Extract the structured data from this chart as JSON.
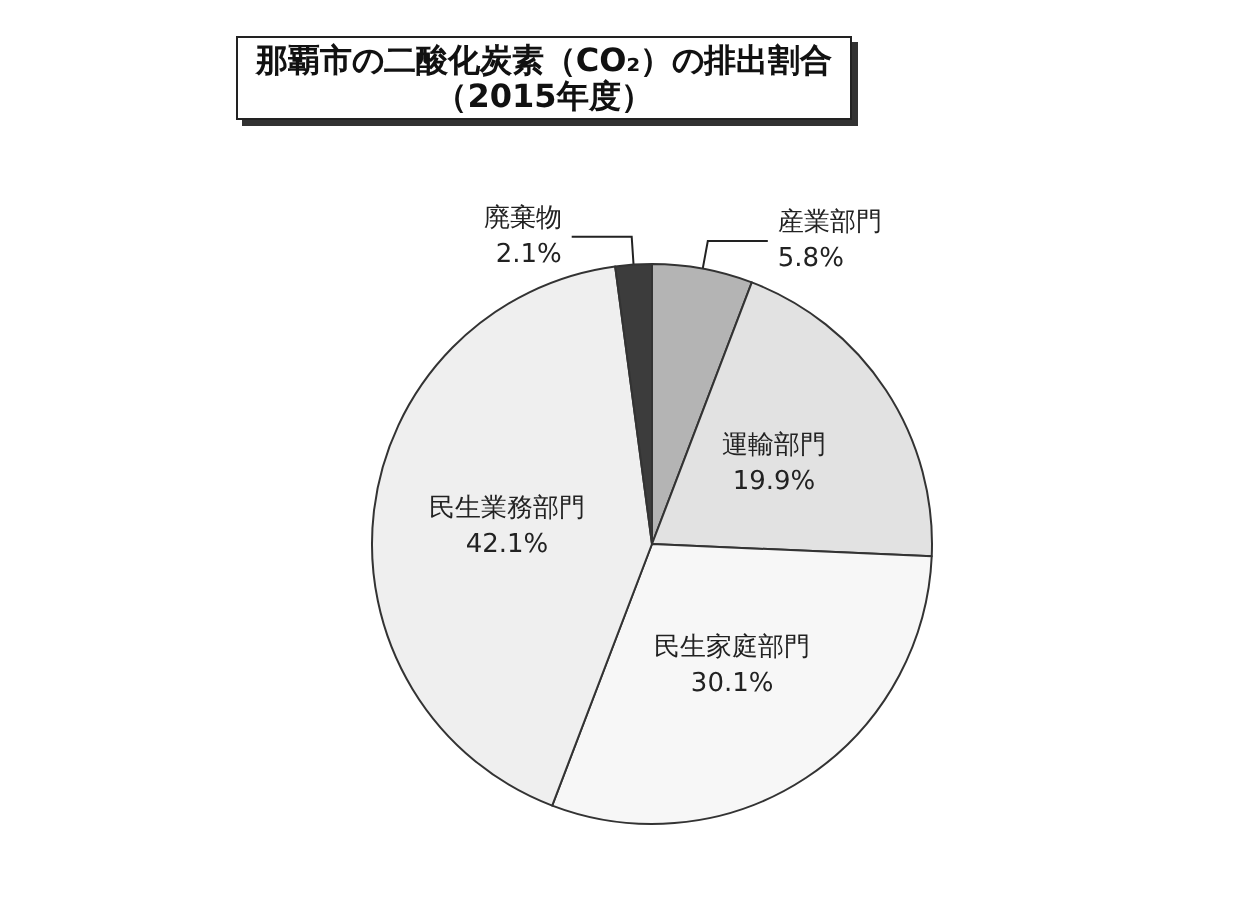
{
  "chart_data": {
    "type": "pie",
    "title": "那覇市の二酸化炭素（CO₂）の排出割合",
    "subtitle": "（2015年度）",
    "categories": [
      "産業部門",
      "運輸部門",
      "民生家庭部門",
      "民生業務部門",
      "廃棄物"
    ],
    "values": [
      5.8,
      19.9,
      30.1,
      42.1,
      2.1
    ],
    "value_labels": [
      "5.8%",
      "19.9%",
      "30.1%",
      "42.1%",
      "2.1%"
    ],
    "colors": [
      "#b4b4b4",
      "#e2e2e2",
      "#f7f7f7",
      "#efefef",
      "#3c3c3c"
    ],
    "legend": false
  }
}
